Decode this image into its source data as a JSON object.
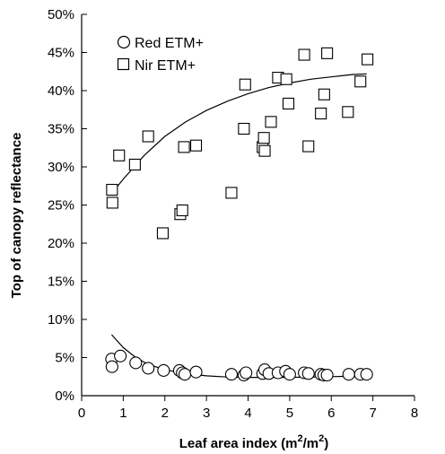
{
  "chart_data": {
    "type": "scatter",
    "title": "",
    "xlabel": "Leaf area index (m²/m²)",
    "xlabel_parts": {
      "pre": "Leaf area index (m",
      "sup1": "2",
      "mid": "/m",
      "sup2": "2",
      "post": ")"
    },
    "ylabel": "Top of canopy reflectance",
    "xlim": [
      0,
      8
    ],
    "ylim": [
      0,
      50
    ],
    "x_ticks": [
      0,
      1,
      2,
      3,
      4,
      5,
      6,
      7,
      8
    ],
    "y_ticks": [
      0,
      5,
      10,
      15,
      20,
      25,
      30,
      35,
      40,
      45,
      50
    ],
    "y_tick_labels": [
      "0%",
      "5%",
      "10%",
      "15%",
      "20%",
      "25%",
      "30%",
      "35%",
      "40%",
      "45%",
      "50%"
    ],
    "grid": false,
    "legend_position": "top-left",
    "series": [
      {
        "name": "Red ETM+",
        "marker": "circle",
        "points": [
          [
            0.72,
            4.8
          ],
          [
            0.73,
            3.8
          ],
          [
            0.93,
            5.2
          ],
          [
            1.3,
            4.3
          ],
          [
            1.6,
            3.6
          ],
          [
            1.97,
            3.3
          ],
          [
            2.35,
            3.3
          ],
          [
            2.42,
            3.0
          ],
          [
            2.48,
            2.8
          ],
          [
            2.75,
            3.1
          ],
          [
            3.6,
            2.8
          ],
          [
            3.9,
            2.7
          ],
          [
            3.95,
            3.0
          ],
          [
            4.35,
            2.9
          ],
          [
            4.4,
            3.4
          ],
          [
            4.5,
            2.9
          ],
          [
            4.72,
            3.0
          ],
          [
            4.9,
            3.2
          ],
          [
            5.0,
            2.8
          ],
          [
            5.35,
            3.0
          ],
          [
            5.45,
            2.9
          ],
          [
            5.75,
            2.8
          ],
          [
            5.82,
            2.7
          ],
          [
            5.9,
            2.7
          ],
          [
            6.42,
            2.8
          ],
          [
            6.7,
            2.8
          ],
          [
            6.85,
            2.8
          ]
        ],
        "trend": [
          [
            0.72,
            8.0
          ],
          [
            1.0,
            6.3
          ],
          [
            1.3,
            5.0
          ],
          [
            1.6,
            4.1
          ],
          [
            2.0,
            3.4
          ],
          [
            2.5,
            2.9
          ],
          [
            3.0,
            2.6
          ],
          [
            3.5,
            2.45
          ],
          [
            4.0,
            2.4
          ],
          [
            5.0,
            2.4
          ],
          [
            6.0,
            2.5
          ],
          [
            6.85,
            2.6
          ]
        ]
      },
      {
        "name": "Nir ETM+",
        "marker": "square",
        "points": [
          [
            0.73,
            27.0
          ],
          [
            0.74,
            25.3
          ],
          [
            0.9,
            31.5
          ],
          [
            1.28,
            30.3
          ],
          [
            1.6,
            34.0
          ],
          [
            1.95,
            21.3
          ],
          [
            2.37,
            23.8
          ],
          [
            2.42,
            24.3
          ],
          [
            2.46,
            32.6
          ],
          [
            2.75,
            32.8
          ],
          [
            3.6,
            26.6
          ],
          [
            3.9,
            35.0
          ],
          [
            3.93,
            40.8
          ],
          [
            4.35,
            32.6
          ],
          [
            4.38,
            33.8
          ],
          [
            4.4,
            32.1
          ],
          [
            4.55,
            35.9
          ],
          [
            4.72,
            41.7
          ],
          [
            4.92,
            41.5
          ],
          [
            4.97,
            38.3
          ],
          [
            5.35,
            44.7
          ],
          [
            5.45,
            32.7
          ],
          [
            5.75,
            37.0
          ],
          [
            5.83,
            39.5
          ],
          [
            5.9,
            44.9
          ],
          [
            6.4,
            37.2
          ],
          [
            6.7,
            41.2
          ],
          [
            6.87,
            44.1
          ]
        ],
        "trend": [
          [
            0.72,
            26.5
          ],
          [
            1.0,
            28.4
          ],
          [
            1.5,
            31.5
          ],
          [
            2.0,
            34.0
          ],
          [
            2.5,
            35.9
          ],
          [
            3.0,
            37.4
          ],
          [
            3.5,
            38.6
          ],
          [
            4.0,
            39.6
          ],
          [
            4.5,
            40.4
          ],
          [
            5.0,
            41.0
          ],
          [
            5.5,
            41.5
          ],
          [
            6.0,
            41.8
          ],
          [
            6.5,
            42.1
          ],
          [
            6.85,
            42.2
          ]
        ]
      }
    ]
  }
}
